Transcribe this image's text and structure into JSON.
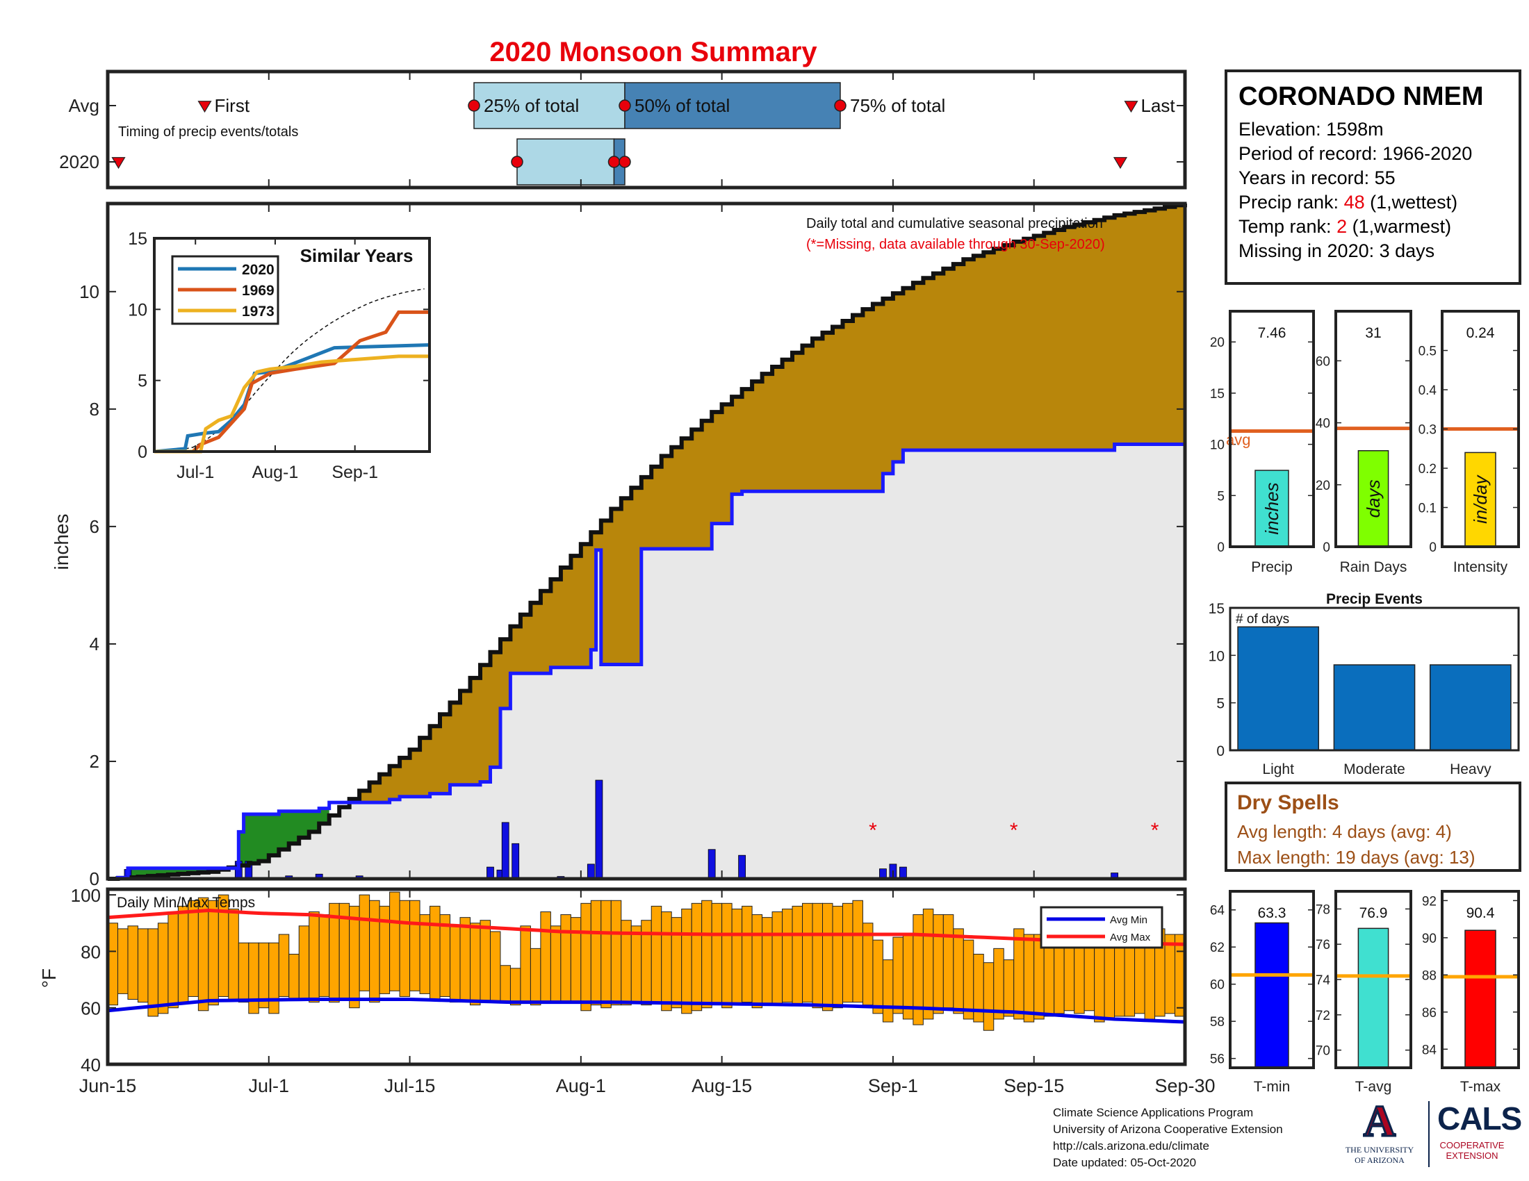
{
  "title": "2020 Monsoon Summary",
  "colors": {
    "title": "#e8000b",
    "cumulative_2020": "#1a1aff",
    "cumulative_avg": "#111111",
    "deficit_fill": "#b8860b",
    "surplus_fill": "#228b22",
    "base_fill": "#e8e8e8",
    "daily_bar": "#1010e0",
    "missing": "#e8000b",
    "temp_bar": "#ffa500",
    "avg_min": "#0000e6",
    "avg_max": "#ff1a1a",
    "precip_bar": "#40e0d0",
    "raindays_bar": "#7fff00",
    "intensity_bar": "#ffd700",
    "avg_line": "#e06020",
    "events_bar": "#0a6ebd",
    "tmin_bar": "#0000ff",
    "tavg_bar": "#40e0d0",
    "tmax_bar": "#ff0000",
    "temp_avg_line": "#ffa500",
    "box_light": "#add8e6",
    "box_dark": "#4682b4"
  },
  "timing": {
    "row_labels": [
      "Avg",
      "2020"
    ],
    "first_label": "First",
    "last_label": "Last",
    "p25_label": "25% of total",
    "p50_label": "50% of total",
    "p75_label": "75% of total",
    "note": "Timing of precip events/totals",
    "avg": {
      "first": 9,
      "p25": 34,
      "p50": 48,
      "p75": 68,
      "last": 95
    },
    "y2020": {
      "first": 1,
      "p25": 38,
      "p50": 47,
      "p75": 48,
      "last": 94
    }
  },
  "station": {
    "name": "CORONADO NMEM",
    "elevation_label": "Elevation: ",
    "elevation": "1598m",
    "period_label": "Period of record: ",
    "period": "1966-2020",
    "years_label": "Years in record: ",
    "years": "55",
    "precip_rank_label": "Precip rank: ",
    "precip_rank": "48",
    "precip_rank_note": " (1,wettest)",
    "temp_rank_label": "Temp rank: ",
    "temp_rank": "2",
    "temp_rank_note": " (1,warmest)",
    "missing_label": "Missing in 2020: ",
    "missing": "3 days"
  },
  "dry_spells": {
    "title": "Dry Spells",
    "avg_length": "Avg length: 4 days (avg: 4)",
    "max_length": "Max length: 19 days (avg: 13)"
  },
  "footer": {
    "line1": "Climate Science Applications Program",
    "line2": "University of Arizona Cooperative Extension",
    "line3": "http://cals.arizona.edu/climate",
    "line4": " Date updated: 05-Oct-2020"
  },
  "logos": {
    "ua_letter": "A",
    "ua_line1": "THE UNIVERSITY",
    "ua_line2": "OF ARIZONA",
    "cals": "CALS",
    "cals_line1": "COOPERATIVE",
    "cals_line2": "EXTENSION"
  },
  "chart_data": [
    {
      "type": "area",
      "name": "Daily total and cumulative seasonal precipitation",
      "title": "Daily total and cumulative seasonal precipitation",
      "subtitle": "(*=Missing, data available through 30-Sep-2020)",
      "ylabel": "inches",
      "ylim": [
        0,
        11.5
      ],
      "yticks": [
        0,
        2,
        4,
        6,
        8,
        10
      ],
      "xlim": [
        0,
        107
      ],
      "xtick_days": [
        0,
        16,
        30,
        47,
        61,
        78,
        92,
        107
      ],
      "xtick_labels": [
        "Jun-15",
        "Jul-1",
        "Jul-15",
        "Aug-1",
        "Aug-15",
        "Sep-1",
        "Sep-15",
        "Sep-30"
      ],
      "cumulative_avg_knots": [
        [
          0,
          0
        ],
        [
          10,
          0.12
        ],
        [
          15,
          0.3
        ],
        [
          20,
          0.8
        ],
        [
          25,
          1.5
        ],
        [
          30,
          2.2
        ],
        [
          35,
          3.2
        ],
        [
          40,
          4.3
        ],
        [
          45,
          5.3
        ],
        [
          50,
          6.3
        ],
        [
          55,
          7.2
        ],
        [
          60,
          7.95
        ],
        [
          65,
          8.6
        ],
        [
          70,
          9.2
        ],
        [
          75,
          9.7
        ],
        [
          80,
          10.15
        ],
        [
          85,
          10.55
        ],
        [
          90,
          10.85
        ],
        [
          95,
          11.1
        ],
        [
          100,
          11.3
        ],
        [
          107,
          11.5
        ]
      ],
      "cumulative_2020_steps": [
        [
          0,
          0
        ],
        [
          1,
          0.02
        ],
        [
          2,
          0.18
        ],
        [
          12,
          0.18
        ],
        [
          13,
          0.8
        ],
        [
          13.5,
          1.1
        ],
        [
          17,
          1.15
        ],
        [
          21,
          1.2
        ],
        [
          22,
          1.3
        ],
        [
          25,
          1.3
        ],
        [
          28,
          1.35
        ],
        [
          29,
          1.4
        ],
        [
          32,
          1.45
        ],
        [
          34,
          1.6
        ],
        [
          37,
          1.65
        ],
        [
          38,
          1.9
        ],
        [
          39,
          2.9
        ],
        [
          40,
          3.5
        ],
        [
          44,
          3.6
        ],
        [
          49,
          3.65
        ],
        [
          48,
          3.9
        ],
        [
          48.5,
          5.6
        ],
        [
          53,
          5.62
        ],
        [
          59,
          5.62
        ],
        [
          60,
          6.05
        ],
        [
          62,
          6.55
        ],
        [
          63,
          6.6
        ],
        [
          76,
          6.6
        ],
        [
          77,
          6.9
        ],
        [
          78,
          7.1
        ],
        [
          79,
          7.3
        ],
        [
          90,
          7.3
        ],
        [
          100,
          7.3
        ],
        [
          100,
          7.4
        ],
        [
          107,
          7.4
        ]
      ],
      "daily_precip": [
        [
          1,
          0.02
        ],
        [
          2,
          0.16
        ],
        [
          13,
          0.3
        ],
        [
          14,
          0.3
        ],
        [
          18,
          0.05
        ],
        [
          21,
          0.08
        ],
        [
          25,
          0.05
        ],
        [
          38,
          0.2
        ],
        [
          39,
          0.15
        ],
        [
          39.5,
          0.96
        ],
        [
          40.5,
          0.6
        ],
        [
          45,
          0.04
        ],
        [
          48,
          0.25
        ],
        [
          48.8,
          1.68
        ],
        [
          60,
          0.5
        ],
        [
          63,
          0.4
        ],
        [
          77,
          0.17
        ],
        [
          78,
          0.25
        ],
        [
          79,
          0.2
        ],
        [
          100,
          0.1
        ]
      ],
      "missing_days": [
        76,
        90,
        104
      ]
    },
    {
      "type": "line",
      "name": "Similar Years",
      "title": "Similar Years",
      "ylim": [
        0,
        15
      ],
      "yticks": [
        0,
        5,
        10,
        15
      ],
      "xticks": [
        "Jul-1",
        "Aug-1",
        "Sep-1"
      ],
      "series": [
        {
          "name": "2020",
          "color": "#1f77b4",
          "points": [
            [
              0,
              0
            ],
            [
              12,
              0.2
            ],
            [
              13,
              1.1
            ],
            [
              20,
              1.3
            ],
            [
              25,
              1.4
            ],
            [
              30,
              2.2
            ],
            [
              35,
              3.3
            ],
            [
              39,
              5.5
            ],
            [
              45,
              5.6
            ],
            [
              50,
              5.9
            ],
            [
              60,
              6.6
            ],
            [
              70,
              7.3
            ],
            [
              107,
              7.5
            ]
          ]
        },
        {
          "name": "1969",
          "color": "#d95319",
          "points": [
            [
              0,
              0
            ],
            [
              15,
              0
            ],
            [
              18,
              0.5
            ],
            [
              25,
              1.0
            ],
            [
              30,
              2.0
            ],
            [
              35,
              3.0
            ],
            [
              38,
              4.8
            ],
            [
              45,
              5.5
            ],
            [
              55,
              5.8
            ],
            [
              70,
              6.2
            ],
            [
              80,
              7.8
            ],
            [
              90,
              8.4
            ],
            [
              95,
              9.8
            ],
            [
              107,
              9.8
            ]
          ]
        },
        {
          "name": "1973",
          "color": "#edb120",
          "points": [
            [
              0,
              0
            ],
            [
              18,
              0
            ],
            [
              20,
              1.6
            ],
            [
              25,
              2.2
            ],
            [
              30,
              2.5
            ],
            [
              35,
              4.5
            ],
            [
              40,
              5.6
            ],
            [
              45,
              5.8
            ],
            [
              55,
              6.0
            ],
            [
              65,
              6.3
            ],
            [
              80,
              6.5
            ],
            [
              95,
              6.7
            ],
            [
              107,
              6.7
            ]
          ]
        }
      ]
    },
    {
      "type": "bar",
      "name": "Daily Min/Max Temps",
      "title": "Daily Min/Max Temps",
      "ylabel": "°F",
      "ylim": [
        40,
        102
      ],
      "yticks": [
        40,
        60,
        80,
        100
      ],
      "legend": [
        "Avg Min",
        "Avg Max"
      ],
      "legend_loc": "top-right",
      "avg_max_knots": [
        [
          0,
          92
        ],
        [
          10,
          94.5
        ],
        [
          15,
          93.5
        ],
        [
          20,
          93
        ],
        [
          30,
          90
        ],
        [
          40,
          88
        ],
        [
          45,
          87
        ],
        [
          50,
          86.5
        ],
        [
          60,
          86
        ],
        [
          70,
          86
        ],
        [
          80,
          86
        ],
        [
          90,
          84.5
        ],
        [
          100,
          83
        ],
        [
          107,
          82.5
        ]
      ],
      "avg_min_knots": [
        [
          0,
          59
        ],
        [
          10,
          62.5
        ],
        [
          20,
          63
        ],
        [
          30,
          63
        ],
        [
          40,
          62
        ],
        [
          50,
          62
        ],
        [
          60,
          61.5
        ],
        [
          70,
          61
        ],
        [
          80,
          60
        ],
        [
          90,
          58.5
        ],
        [
          100,
          56
        ],
        [
          107,
          55
        ]
      ],
      "daily_ranges": [
        [
          61,
          90
        ],
        [
          65,
          88
        ],
        [
          63,
          89
        ],
        [
          62,
          88
        ],
        [
          57,
          88
        ],
        [
          58,
          90
        ],
        [
          60,
          94
        ],
        [
          62,
          96
        ],
        [
          64,
          98
        ],
        [
          59,
          99
        ],
        [
          61,
          98
        ],
        [
          64,
          100
        ],
        [
          63,
          95
        ],
        [
          62,
          83
        ],
        [
          58,
          83
        ],
        [
          60,
          83
        ],
        [
          58,
          83
        ],
        [
          64,
          86
        ],
        [
          63,
          79
        ],
        [
          63,
          89
        ],
        [
          62,
          94
        ],
        [
          64,
          93
        ],
        [
          62,
          97
        ],
        [
          63,
          97
        ],
        [
          60,
          96
        ],
        [
          66,
          100
        ],
        [
          62,
          98
        ],
        [
          65,
          96
        ],
        [
          66,
          101
        ],
        [
          64,
          98
        ],
        [
          66,
          98
        ],
        [
          65,
          93
        ],
        [
          63,
          96
        ],
        [
          64,
          93
        ],
        [
          62,
          89
        ],
        [
          62,
          92
        ],
        [
          61,
          90
        ],
        [
          62,
          91
        ],
        [
          62,
          87
        ],
        [
          62,
          75
        ],
        [
          61,
          74
        ],
        [
          62,
          89
        ],
        [
          61,
          81
        ],
        [
          62,
          94
        ],
        [
          62,
          89
        ],
        [
          62,
          93
        ],
        [
          62,
          92
        ],
        [
          59,
          97
        ],
        [
          61,
          98
        ],
        [
          60,
          98
        ],
        [
          61,
          98
        ],
        [
          61,
          91
        ],
        [
          62,
          89
        ],
        [
          61,
          91
        ],
        [
          62,
          96
        ],
        [
          59,
          94
        ],
        [
          60,
          92
        ],
        [
          58,
          95
        ],
        [
          59,
          97
        ],
        [
          60,
          98
        ],
        [
          61,
          97
        ],
        [
          60,
          97
        ],
        [
          61,
          95
        ],
        [
          62,
          96
        ],
        [
          60,
          93
        ],
        [
          61,
          92
        ],
        [
          61,
          94
        ],
        [
          62,
          95
        ],
        [
          61,
          96
        ],
        [
          62,
          97
        ],
        [
          60,
          97
        ],
        [
          59,
          97
        ],
        [
          60,
          96
        ],
        [
          62,
          97
        ],
        [
          62,
          98
        ],
        [
          61,
          90
        ],
        [
          58,
          84
        ],
        [
          55,
          77
        ],
        [
          58,
          85
        ],
        [
          56,
          86
        ],
        [
          54,
          93
        ],
        [
          56,
          95
        ],
        [
          58,
          93
        ],
        [
          60,
          93
        ],
        [
          58,
          88
        ],
        [
          56,
          84
        ],
        [
          55,
          79
        ],
        [
          52,
          76
        ],
        [
          56,
          81
        ],
        [
          57,
          77
        ],
        [
          56,
          88
        ],
        [
          55,
          86
        ],
        [
          56,
          86
        ],
        [
          57,
          85
        ],
        [
          58,
          87
        ],
        [
          59,
          85
        ],
        [
          58,
          87
        ],
        [
          59,
          84
        ],
        [
          55,
          85
        ],
        [
          56,
          82
        ],
        [
          57,
          86
        ],
        [
          57,
          87
        ],
        [
          58,
          87
        ],
        [
          56,
          86
        ],
        [
          57,
          88
        ],
        [
          58,
          86
        ],
        [
          57,
          86
        ]
      ]
    },
    {
      "type": "bar",
      "name": "Seasonal totals vs average",
      "panels": [
        {
          "label": "Precip",
          "value": 7.46,
          "value_label": "7.46",
          "unit": "inches",
          "avg": 11.3,
          "avg_label": "avg",
          "ylim": [
            0,
            23
          ],
          "yticks": [
            0,
            5,
            10,
            15,
            20
          ]
        },
        {
          "label": "Rain Days",
          "value": 31,
          "value_label": "31",
          "unit": "days",
          "avg": 38.2,
          "ylim": [
            0,
            76
          ],
          "yticks": [
            0,
            20,
            40,
            60
          ]
        },
        {
          "label": "Intensity",
          "value": 0.24,
          "value_label": "0.24",
          "unit": "in/day",
          "avg": 0.3,
          "ylim": [
            0,
            0.6
          ],
          "yticks": [
            0,
            0.1,
            0.2,
            0.3,
            0.4,
            0.5
          ]
        }
      ]
    },
    {
      "type": "bar",
      "name": "Precip Events",
      "title": "Precip Events",
      "ylabel_note": "# of days",
      "categories": [
        "Light",
        "Moderate",
        "Heavy"
      ],
      "values": [
        13,
        9,
        9
      ],
      "ylim": [
        0,
        15
      ],
      "yticks": [
        0,
        5,
        10,
        15
      ]
    },
    {
      "type": "bar",
      "name": "Seasonal temperatures vs average",
      "panels": [
        {
          "label": "T-min",
          "value": 63.3,
          "value_label": "63.3",
          "avg": 60.5,
          "ylim": [
            55.5,
            65
          ],
          "yticks": [
            56,
            58,
            60,
            62,
            64
          ]
        },
        {
          "label": "T-avg",
          "value": 76.9,
          "value_label": "76.9",
          "avg": 74.2,
          "ylim": [
            69,
            79
          ],
          "yticks": [
            70,
            72,
            74,
            76,
            78
          ]
        },
        {
          "label": "T-max",
          "value": 90.4,
          "value_label": "90.4",
          "avg": 87.9,
          "ylim": [
            83,
            92.5
          ],
          "yticks": [
            84,
            86,
            88,
            90,
            92
          ]
        }
      ]
    }
  ]
}
